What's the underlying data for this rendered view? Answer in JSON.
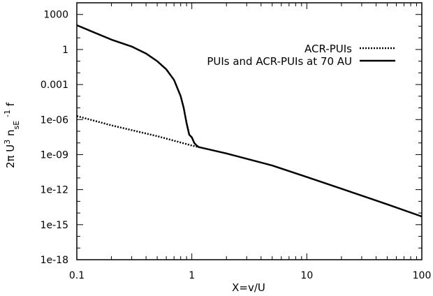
{
  "chart_data": {
    "type": "line",
    "title": "",
    "xlabel": "X=v/U",
    "ylabel": {
      "parts": [
        "2π U",
        "3",
        " n",
        "sE",
        " ",
        "-1",
        " f"
      ]
    },
    "x_scale": "log",
    "y_scale": "log",
    "xlim": [
      0.1,
      100
    ],
    "ylim": [
      1e-18,
      10000
    ],
    "grid": false,
    "legend_position": "top-right",
    "x_ticks": [
      {
        "value": 0.1,
        "label": "0.1"
      },
      {
        "value": 1,
        "label": "1"
      },
      {
        "value": 10,
        "label": "10"
      },
      {
        "value": 100,
        "label": "100"
      }
    ],
    "y_ticks": [
      {
        "value": 1000,
        "label": "1000"
      },
      {
        "value": 1,
        "label": "1"
      },
      {
        "value": 0.001,
        "label": "0.001"
      },
      {
        "value": 1e-06,
        "label": "1e-06"
      },
      {
        "value": 1e-09,
        "label": "1e-09"
      },
      {
        "value": 1e-12,
        "label": "1e-12"
      },
      {
        "value": 1e-15,
        "label": "1e-15"
      },
      {
        "value": 1e-18,
        "label": "1e-18"
      }
    ],
    "series": [
      {
        "name": "ACR-PUIs",
        "style": "dotted",
        "color": "#000000",
        "x": [
          0.1,
          0.2,
          0.5,
          1.0,
          1.15
        ],
        "y": [
          2e-06,
          3.2e-07,
          3.8e-08,
          6e-09,
          4.4e-09
        ]
      },
      {
        "name": "PUIs and ACR-PUIs at 70 AU",
        "style": "solid",
        "color": "#000000",
        "x": [
          0.1,
          0.2,
          0.3,
          0.4,
          0.5,
          0.6,
          0.7,
          0.8,
          0.85,
          0.9,
          0.95,
          1.0,
          1.05,
          1.1,
          1.15,
          2,
          5,
          10,
          20,
          50,
          100
        ],
        "y": [
          120,
          7,
          1.8,
          0.45,
          0.1,
          0.02,
          0.0025,
          0.0001,
          1e-05,
          5e-07,
          5e-08,
          3e-08,
          1e-08,
          6e-09,
          4.4e-09,
          1.25e-09,
          1.17e-10,
          1.2e-11,
          1.2e-12,
          5.5e-14,
          5e-15
        ]
      }
    ]
  }
}
